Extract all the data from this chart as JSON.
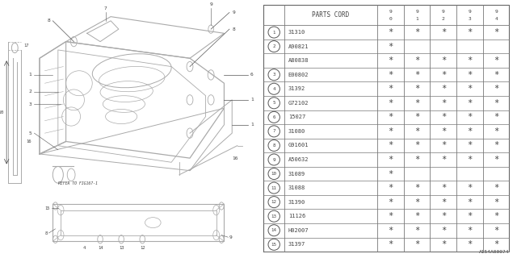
{
  "figure_id": "A154A00074",
  "col_headers": [
    "9\n0",
    "9\n1",
    "9\n2",
    "9\n3",
    "9\n4"
  ],
  "parts": [
    {
      "num": 1,
      "code": "31310",
      "marks": [
        true,
        true,
        true,
        true,
        true
      ]
    },
    {
      "num": 2,
      "code": "A90821",
      "marks": [
        true,
        false,
        false,
        false,
        false
      ]
    },
    {
      "num": 2,
      "code": "A80838",
      "marks": [
        true,
        true,
        true,
        true,
        true
      ]
    },
    {
      "num": 3,
      "code": "E00802",
      "marks": [
        true,
        true,
        true,
        true,
        true
      ]
    },
    {
      "num": 4,
      "code": "31392",
      "marks": [
        true,
        true,
        true,
        true,
        true
      ]
    },
    {
      "num": 5,
      "code": "G72102",
      "marks": [
        true,
        true,
        true,
        true,
        true
      ]
    },
    {
      "num": 6,
      "code": "15027",
      "marks": [
        true,
        true,
        true,
        true,
        true
      ]
    },
    {
      "num": 7,
      "code": "31080",
      "marks": [
        true,
        true,
        true,
        true,
        true
      ]
    },
    {
      "num": 8,
      "code": "G91601",
      "marks": [
        true,
        true,
        true,
        true,
        true
      ]
    },
    {
      "num": 9,
      "code": "A50632",
      "marks": [
        true,
        true,
        true,
        true,
        true
      ]
    },
    {
      "num": 10,
      "code": "31089",
      "marks": [
        true,
        false,
        false,
        false,
        false
      ]
    },
    {
      "num": 11,
      "code": "31088",
      "marks": [
        true,
        true,
        true,
        true,
        true
      ]
    },
    {
      "num": 12,
      "code": "31390",
      "marks": [
        true,
        true,
        true,
        true,
        true
      ]
    },
    {
      "num": 13,
      "code": "11126",
      "marks": [
        true,
        true,
        true,
        true,
        true
      ]
    },
    {
      "num": 14,
      "code": "H02007",
      "marks": [
        true,
        true,
        true,
        true,
        true
      ]
    },
    {
      "num": 15,
      "code": "31397",
      "marks": [
        true,
        true,
        true,
        true,
        true
      ]
    }
  ],
  "bg_color": "#ffffff",
  "line_color": "#999999",
  "text_color": "#444444",
  "dark_color": "#555555",
  "diag_lc": "#aaaaaa"
}
